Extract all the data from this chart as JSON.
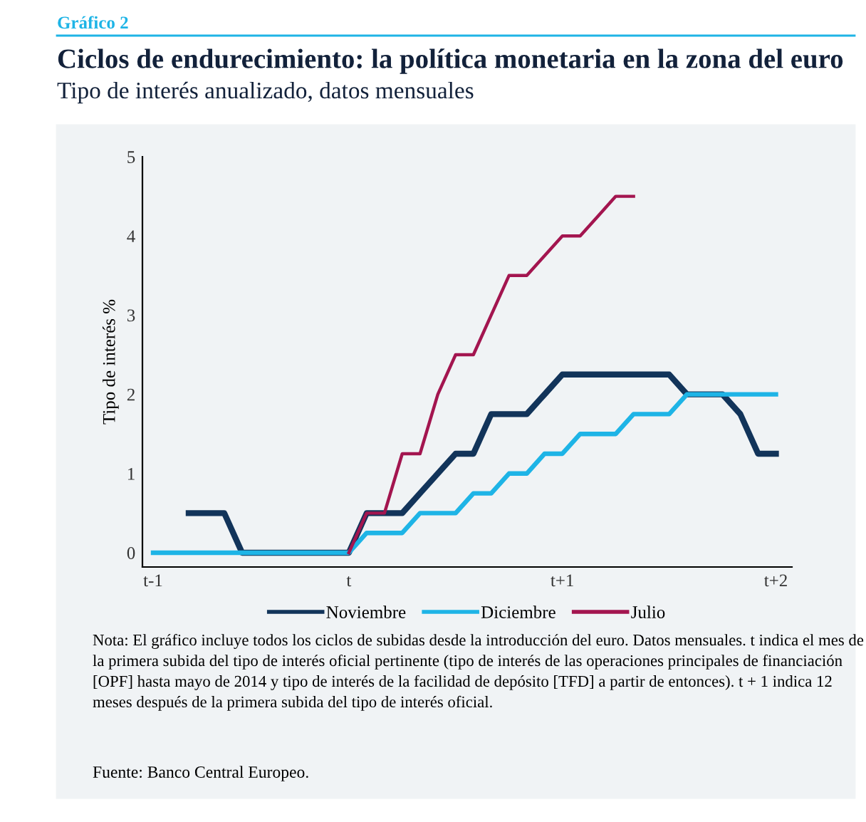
{
  "chart_data": {
    "type": "line",
    "title": "Ciclos de endurecimiento: la política monetaria en la zona del euro",
    "subtitle": "Tipo de interés anualizado, datos mensuales",
    "ylabel": "Tipo de interés %",
    "annotations": [
      "Gráfico 2",
      "Nota: El gráfico incluye todos los ciclos de subidas desde la introducción del euro. Datos mensuales. t indica el mes de la primera subida del tipo de interés oficial pertinente (tipo de interés de las operaciones principales de financiación [OPF] hasta mayo de 2014 y tipo de interés de la facilidad de depósito [TFD] a partir de entonces). t + 1 indica 12 meses después de la primera subida del tipo de interés oficial.",
      "Fuente: Banco Central Europeo."
    ],
    "categories": [
      "t-1",
      null,
      null,
      null,
      null,
      null,
      null,
      null,
      null,
      null,
      null,
      "t",
      null,
      null,
      null,
      null,
      null,
      null,
      null,
      null,
      null,
      null,
      null,
      "t+1",
      null,
      null,
      null,
      null,
      null,
      null,
      null,
      null,
      null,
      null,
      null,
      "t+2"
    ],
    "series": [
      {
        "name": "Noviembre",
        "color": "#12345a",
        "values": [
          null,
          null,
          0.5,
          0.5,
          0.5,
          0,
          0,
          0,
          0,
          0,
          0,
          0,
          0.5,
          0.5,
          0.5,
          0.75,
          1,
          1.25,
          1.25,
          1.75,
          1.75,
          1.75,
          2,
          2.25,
          2.25,
          2.25,
          2.25,
          2.25,
          2.25,
          2.25,
          2,
          2,
          2,
          1.75,
          1.25,
          1.25
        ]
      },
      {
        "name": "Diciembre",
        "color": "#1eb4e6",
        "values": [
          0,
          0,
          0,
          0,
          0,
          0,
          0,
          0,
          0,
          0,
          0,
          0,
          0.25,
          0.25,
          0.25,
          0.5,
          0.5,
          0.5,
          0.75,
          0.75,
          1,
          1,
          1.25,
          1.25,
          1.5,
          1.5,
          1.5,
          1.75,
          1.75,
          1.75,
          2,
          2,
          2,
          2,
          2,
          2
        ]
      },
      {
        "name": "Julio",
        "color": "#a3154f",
        "values": [
          null,
          null,
          null,
          null,
          null,
          null,
          null,
          null,
          null,
          null,
          null,
          0,
          0.5,
          0.5,
          1.25,
          1.25,
          2,
          2.5,
          2.5,
          3,
          3.5,
          3.5,
          3.75,
          4,
          4,
          4.25,
          4.5,
          4.5,
          null,
          null,
          null,
          null,
          null,
          null,
          null,
          null
        ]
      }
    ],
    "ylim": [
      -0.18,
      5
    ],
    "yticks": [
      0,
      1,
      2,
      3,
      4,
      5
    ],
    "legend": "bottom",
    "line_style": "solid"
  }
}
